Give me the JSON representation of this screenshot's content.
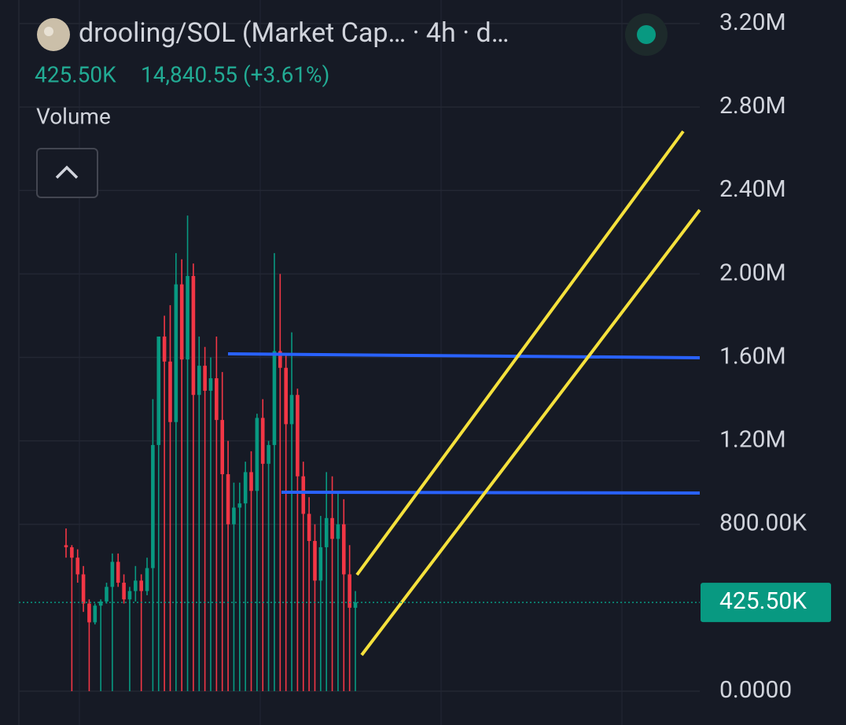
{
  "chart_data": {
    "type": "candlestick",
    "title": "drooling/SOL (Market Cap… · 4h · d…",
    "legend_values": [
      "425.50K",
      "14,840.55 (+3.61%)"
    ],
    "study": "Volume",
    "up_color": "#089981",
    "down_color": "#f23645",
    "open": [
      700000,
      690000,
      640000,
      560000,
      420000,
      330000,
      410000,
      430000,
      500000,
      620000,
      520000,
      440000,
      480000,
      530000,
      480000,
      590000,
      1180000,
      1700000,
      1580000,
      1290000,
      1950000,
      1590000,
      1990000,
      1420000,
      1560000,
      1440000,
      1500000,
      1300000,
      1040000,
      800000,
      880000,
      900000,
      1050000,
      960000,
      1310000,
      1090000,
      1180000,
      1630000,
      1550000,
      1280000,
      1420000,
      1030000,
      850000,
      720000,
      530000,
      690000,
      830000,
      730000,
      800000,
      560000,
      400000
    ],
    "high": [
      780000,
      700000,
      680000,
      600000,
      440000,
      420000,
      440000,
      520000,
      660000,
      660000,
      560000,
      500000,
      600000,
      560000,
      640000,
      1400000,
      1700000,
      1800000,
      1850000,
      2100000,
      2070000,
      2280000,
      2050000,
      1700000,
      1650000,
      1600000,
      1700000,
      1530000,
      1200000,
      1000000,
      1000000,
      1100000,
      1150000,
      1330000,
      1400000,
      1200000,
      2100000,
      2000000,
      1620000,
      1720000,
      1450000,
      1100000,
      930000,
      800000,
      840000,
      1050000,
      1030000,
      950000,
      920000,
      700000,
      480000
    ],
    "low": [
      640000,
      0,
      520000,
      380000,
      0,
      320000,
      0,
      420000,
      0,
      500000,
      420000,
      0,
      430000,
      0,
      460000,
      0,
      0,
      0,
      0,
      0,
      0,
      0,
      0,
      0,
      0,
      0,
      0,
      0,
      0,
      0,
      0,
      0,
      0,
      0,
      0,
      0,
      0,
      0,
      0,
      0,
      0,
      0,
      0,
      0,
      0,
      0,
      0,
      0,
      0,
      0,
      0
    ],
    "close": [
      690000,
      640000,
      560000,
      420000,
      330000,
      410000,
      430000,
      500000,
      620000,
      520000,
      440000,
      480000,
      530000,
      480000,
      590000,
      1180000,
      1700000,
      1580000,
      1290000,
      1950000,
      1590000,
      1990000,
      1420000,
      1560000,
      1440000,
      1500000,
      1300000,
      1040000,
      800000,
      880000,
      900000,
      1050000,
      960000,
      1310000,
      1090000,
      1180000,
      1630000,
      1550000,
      1280000,
      1420000,
      1030000,
      850000,
      720000,
      530000,
      690000,
      830000,
      730000,
      800000,
      560000,
      400000,
      425500
    ],
    "ylim": [
      0,
      3200000
    ],
    "yticks": [
      {
        "value": 0,
        "label": "0.0000"
      },
      {
        "value": 800000,
        "label": "800.00K"
      },
      {
        "value": 1200000,
        "label": "1.20M"
      },
      {
        "value": 1600000,
        "label": "1.60M"
      },
      {
        "value": 2000000,
        "label": "2.00M"
      },
      {
        "value": 2400000,
        "label": "2.40M"
      },
      {
        "value": 2800000,
        "label": "2.80M"
      },
      {
        "value": 3200000,
        "label": "3.20M"
      }
    ],
    "last_price": {
      "value": 425500,
      "label": "425.50K"
    },
    "grid": true
  }
}
